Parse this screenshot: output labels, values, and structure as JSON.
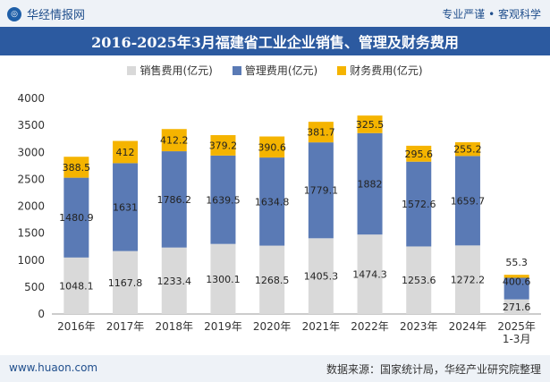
{
  "header": {
    "brand": "华经情报网",
    "tagline": "专业严谨 • 客观科学"
  },
  "title": "2016-2025年3月福建省工业企业销售、管理及财务费用",
  "footer": {
    "website": "www.huaon.com",
    "source": "数据来源：国家统计局，华经产业研究院整理"
  },
  "colors": {
    "sales": "#d9d9d9",
    "admin": "#5a7ab5",
    "finance": "#f5b400",
    "title_bg": "#2c5aa0"
  },
  "chart_data": {
    "type": "bar",
    "stacked": true,
    "categories": [
      "2016年",
      "2017年",
      "2018年",
      "2019年",
      "2020年",
      "2021年",
      "2022年",
      "2023年",
      "2024年",
      "2025年\n1-3月"
    ],
    "series": [
      {
        "name": "销售费用(亿元)",
        "values": [
          1048.1,
          1167.8,
          1233.4,
          1300.1,
          1268.5,
          1405.3,
          1474.3,
          1253.6,
          1272.2,
          271.6
        ]
      },
      {
        "name": "管理费用(亿元)",
        "values": [
          1480.9,
          1631,
          1786.2,
          1639.5,
          1634.8,
          1779.1,
          1882,
          1572.6,
          1659.7,
          400.6
        ]
      },
      {
        "name": "财务费用(亿元)",
        "values": [
          388.5,
          412,
          412.2,
          379.2,
          390.6,
          381.7,
          325.5,
          295.6,
          255.2,
          55.3
        ]
      }
    ],
    "value_labels": [
      [
        "1048.1",
        "1167.8",
        "1233.4",
        "1300.1",
        "1268.5",
        "1405.3",
        "1474.3",
        "1253.6",
        "1272.2",
        "271.6"
      ],
      [
        "1480.9",
        "1631",
        "1786.2",
        "1639.5",
        "1634.8",
        "1779.1",
        "1882",
        "1572.6",
        "1659.7",
        "400.6"
      ],
      [
        "388.5",
        "412",
        "412.2",
        "379.2",
        "390.6",
        "381.7",
        "325.5",
        "295.6",
        "255.2",
        "55.3"
      ]
    ],
    "yticks": [
      "0",
      "500",
      "1000",
      "1500",
      "2000",
      "2500",
      "3000",
      "3500",
      "4000"
    ],
    "ylim": [
      0,
      4000
    ],
    "legend_position": "top-center"
  }
}
